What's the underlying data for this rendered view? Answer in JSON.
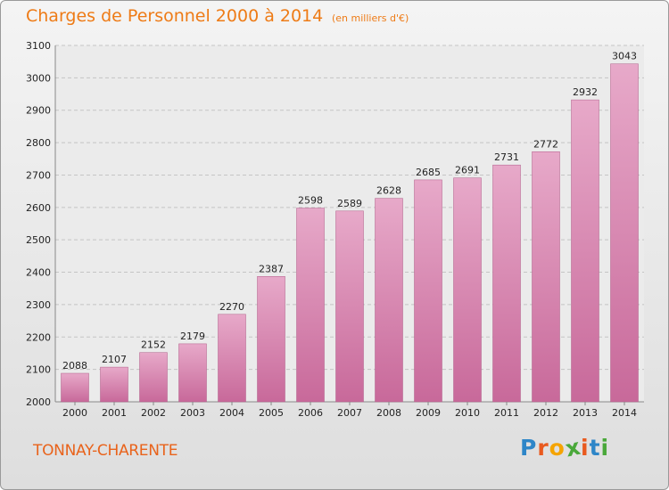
{
  "chart_data": {
    "type": "bar",
    "title": "Charges de Personnel 2000 à 2014",
    "subtitle": "(en milliers d'€)",
    "categories": [
      "2000",
      "2001",
      "2002",
      "2003",
      "2004",
      "2005",
      "2006",
      "2007",
      "2008",
      "2009",
      "2010",
      "2011",
      "2012",
      "2013",
      "2014"
    ],
    "values": [
      2088,
      2107,
      2152,
      2179,
      2270,
      2387,
      2598,
      2589,
      2628,
      2685,
      2691,
      2731,
      2772,
      2932,
      3043
    ],
    "ylim": [
      2000,
      3100
    ],
    "yticks": [
      "2000",
      "2100",
      "2200",
      "2300",
      "2400",
      "2500",
      "2600",
      "2700",
      "2800",
      "2900",
      "3000",
      "3100"
    ],
    "xlabel": "",
    "ylabel": "",
    "grid": true,
    "bar_color": "#c8699a",
    "bar_highlight": "#e7a9c9"
  },
  "location": "TONNAY-CHARENTE",
  "logo": {
    "letters": [
      "P",
      "r",
      "o",
      "x",
      "i",
      "t",
      "i"
    ],
    "colors": [
      "#2e86c8",
      "#e95a1f",
      "#f5a400",
      "#4aa83a",
      "#e95a1f",
      "#2e86c8",
      "#4aa83a"
    ]
  }
}
